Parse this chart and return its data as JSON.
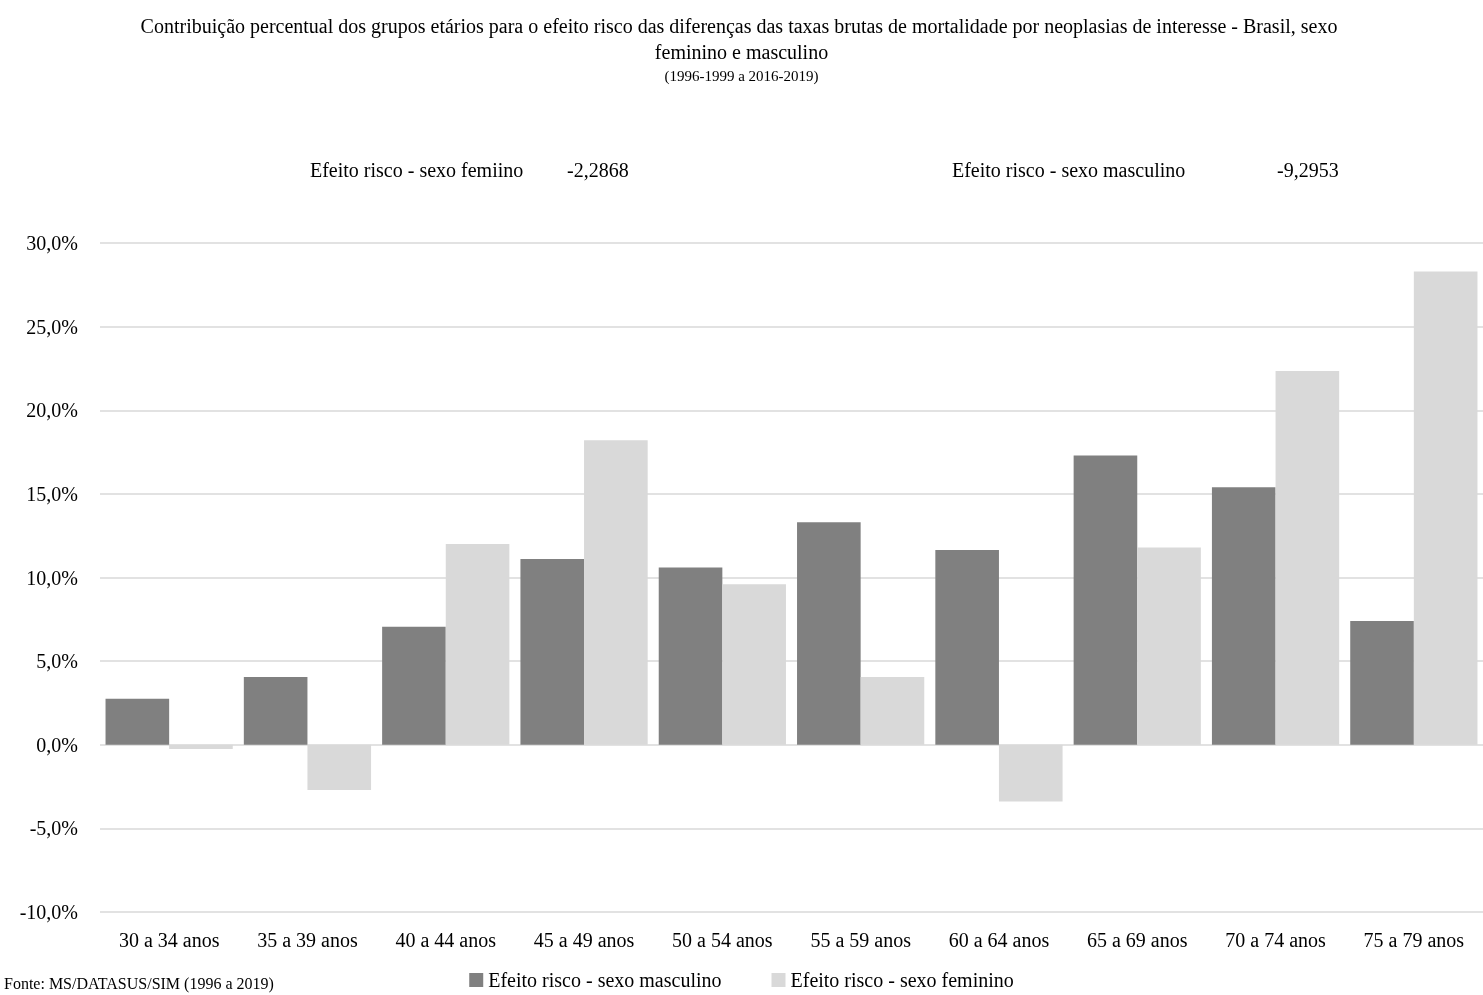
{
  "chart_data": {
    "type": "bar",
    "title": "Contribuição percentual dos grupos etários para o efeito risco das diferenças das taxas brutas de mortalidade por neoplasias de interesse - Brasil, sexo feminino e masculino",
    "subtitle": "(1996-1999 a 2016-2019)",
    "categories": [
      "30 a 34 anos",
      "35 a 39 anos",
      "40 a 44 anos",
      "45 a 49 anos",
      "50 a 54 anos",
      "55 a 59 anos",
      "60 a 64 anos",
      "65 a 69 anos",
      "70 a 74 anos",
      "75 a 79 anos"
    ],
    "series": [
      {
        "name": "Efeito risco - sexo masculino",
        "color": "#808080",
        "values": [
          2.75,
          4.05,
          7.05,
          11.1,
          10.6,
          13.3,
          11.65,
          17.3,
          15.4,
          7.4
        ]
      },
      {
        "name": "Efeito risco - sexo feminino",
        "color": "#d9d9d9",
        "values": [
          -0.25,
          -2.7,
          12.0,
          18.2,
          9.6,
          4.05,
          -3.4,
          11.8,
          22.35,
          28.3
        ]
      }
    ],
    "ylim": [
      -10,
      30
    ],
    "yticks": [
      {
        "value": -10,
        "label": "-10,0%"
      },
      {
        "value": -5,
        "label": "-5,0%"
      },
      {
        "value": 0,
        "label": "0,0%"
      },
      {
        "value": 5,
        "label": "5,0%"
      },
      {
        "value": 10,
        "label": "10,0%"
      },
      {
        "value": 15,
        "label": "15,0%"
      },
      {
        "value": 20,
        "label": "20,0%"
      },
      {
        "value": 25,
        "label": "25,0%"
      },
      {
        "value": 30,
        "label": "30,0%"
      }
    ],
    "grid": "y",
    "legend": "bottom",
    "annotations": [
      "Efeito risco - sexo femiino",
      "-2,2868",
      "Efeito risco - sexo masculino",
      "-9,2953",
      "Fonte: MS/DATASUS/SIM (1996 a 2019)"
    ]
  }
}
